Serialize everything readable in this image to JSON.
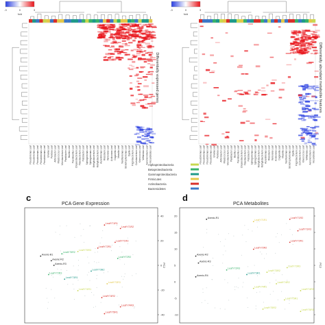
{
  "colors": {
    "high": "#e8141a",
    "low": "#2a3fe0",
    "mid": "#ffffff",
    "taxa": {
      "Alphaproteobacteria": "#c8d850",
      "Betaproteobacteria": "#39b36b",
      "Gammaproteobacteria": "#1f9a8a",
      "Firmicutes": "#e4c84a",
      "Actinobacteria": "#d9302a",
      "Bacteroidetes": "#3d78c8"
    }
  },
  "panel_a": {
    "legend_label": "fold",
    "legend_ticks": [
      "-3",
      "0",
      "3"
    ],
    "side_label": "Differentially expressed genes",
    "column_labels": [
      "Pseudomonas Leaf",
      "Pseudomonas Leaf",
      "Pseudomonas Leaf",
      "Pseudomonas Leaf",
      "Pseudomonas Leaf",
      "Erwinia Leaf",
      "Pantoea Leaf",
      "Arthrobacter Leaf",
      "Rhodococcus Leaf",
      "Microbacterium Leaf",
      "Plantibacter Leaf",
      "Bacillus Leaf",
      "Paenibacillus Leaf",
      "Chryseobacterium Leaf",
      "Flavobacterium Leaf",
      "Pedobacter Leaf",
      "Sphingomonas Leaf",
      "Sphingomonas Leaf",
      "Methylobacterium Leaf",
      "Methylobacterium Leaf",
      "Aurantimonas Leaf",
      "Rhizobium Leaf",
      "Variovorax Leaf",
      "Acidovorax Leaf",
      "Duganella Leaf",
      "Massilia Leaf",
      "Xanthomonas Leaf",
      "Stenotrophomonas Leaf",
      "Dyella Leaf",
      "Frigoribacterium Leaf",
      "Curtobacterium Leaf",
      "Kineococcus Leaf",
      "Williamsia Leaf",
      "Aeromicrobium Leaf",
      "Nocardioides Leaf"
    ]
  },
  "panel_b": {
    "legend_label": "fold",
    "legend_ticks": [
      "-3",
      "0",
      "3"
    ],
    "side_label": "Differentially abundant metabolite features",
    "column_labels": [
      "Pseudomonas Leaf",
      "Pseudomonas Leaf",
      "Pseudomonas Leaf",
      "Pseudomonas Leaf",
      "Erwinia Leaf",
      "Pantoea Leaf",
      "Arthrobacter Leaf",
      "Rhodococcus Leaf",
      "Microbacterium Leaf",
      "Plantibacter Leaf",
      "Bacillus Leaf",
      "Paenibacillus Leaf",
      "Chryseobacterium Leaf",
      "Flavobacterium Leaf",
      "Pedobacter Leaf",
      "Sphingomonas Leaf",
      "Sphingomonas Leaf",
      "Methylobacterium Leaf",
      "Methylobacterium Leaf",
      "Aurantimonas Leaf",
      "Rhizobium Leaf",
      "Variovorax Leaf",
      "Acidovorax Leaf",
      "Duganella Leaf",
      "Massilia Leaf",
      "Xanthomonas Leaf",
      "Stenotrophomonas Leaf",
      "Dyella Leaf",
      "Frigoribacterium Leaf",
      "Curtobacterium Leaf",
      "Kineococcus Leaf",
      "Williamsia Leaf",
      "Aeromicrobium Leaf",
      "Nocardioides Leaf"
    ]
  },
  "taxa_legend": [
    {
      "name": "Alphaproteobacteria",
      "color": "#c8d850"
    },
    {
      "name": "Betaproteobacteria",
      "color": "#39b36b"
    },
    {
      "name": "Gammaproteobacteria",
      "color": "#1f9a8a"
    },
    {
      "name": "Firmicutes",
      "color": "#e4c84a"
    },
    {
      "name": "Actinobacteria",
      "color": "#d9302a"
    },
    {
      "name": "Bacteroidetes",
      "color": "#3d78c8"
    }
  ],
  "panel_c": {
    "letter": "c",
    "title": "PCA Gene Expression",
    "y_ticks": [
      "40",
      "20",
      "0",
      "-20",
      "-40"
    ],
    "y_axis_label": "PC2",
    "labels": [
      {
        "text": "Axenic-R1",
        "color": "#222222",
        "x": 0.12,
        "y": 0.42
      },
      {
        "text": "Axenic-R2",
        "color": "#222222",
        "x": 0.2,
        "y": 0.46
      },
      {
        "text": "Axenic-R3",
        "color": "#222222",
        "x": 0.22,
        "y": 0.5
      },
      {
        "text": "LeafY71R1",
        "color": "#d9302a",
        "x": 0.6,
        "y": 0.15
      },
      {
        "text": "LeafY71R2",
        "color": "#d9302a",
        "x": 0.72,
        "y": 0.18
      },
      {
        "text": "LeafY71R3",
        "color": "#d9302a",
        "x": 0.68,
        "y": 0.3
      },
      {
        "text": "LeafY72R1",
        "color": "#d9302a",
        "x": 0.55,
        "y": 0.35
      },
      {
        "text": "LeafY72R2",
        "color": "#39b36b",
        "x": 0.7,
        "y": 0.44
      },
      {
        "text": "LeafY72R3",
        "color": "#39b36b",
        "x": 0.18,
        "y": 0.58
      },
      {
        "text": "LeafY73R1",
        "color": "#1f9a8a",
        "x": 0.3,
        "y": 0.62
      },
      {
        "text": "LeafY73R2",
        "color": "#1f9a8a",
        "x": 0.5,
        "y": 0.55
      },
      {
        "text": "LeafY73R3",
        "color": "#e4c84a",
        "x": 0.62,
        "y": 0.66
      },
      {
        "text": "LeafY74R1",
        "color": "#c8d850",
        "x": 0.4,
        "y": 0.72
      },
      {
        "text": "LeafY74R2",
        "color": "#d9302a",
        "x": 0.58,
        "y": 0.78
      },
      {
        "text": "LeafY74R3",
        "color": "#d9302a",
        "x": 0.72,
        "y": 0.86
      },
      {
        "text": "LeafY75R1",
        "color": "#d9302a",
        "x": 0.6,
        "y": 0.92
      },
      {
        "text": "LeafY75R2",
        "color": "#39b36b",
        "x": 0.28,
        "y": 0.4
      },
      {
        "text": "LeafY75R3",
        "color": "#c8d850",
        "x": 0.4,
        "y": 0.38
      }
    ]
  },
  "panel_d": {
    "letter": "d",
    "title": "PCA Metabolites",
    "y_ticks": [
      "20",
      "15",
      "10",
      "5",
      "0",
      "-5",
      "-10"
    ],
    "y_axis_label": "PC2",
    "labels": [
      {
        "text": "Axenic-R1",
        "color": "#222222",
        "x": 0.2,
        "y": 0.1
      },
      {
        "text": "Axenic-R2",
        "color": "#222222",
        "x": 0.12,
        "y": 0.42
      },
      {
        "text": "Axenic-R3",
        "color": "#222222",
        "x": 0.14,
        "y": 0.48
      },
      {
        "text": "Axenic-R4",
        "color": "#222222",
        "x": 0.12,
        "y": 0.6
      },
      {
        "text": "LeafY71R1",
        "color": "#e4c84a",
        "x": 0.55,
        "y": 0.12
      },
      {
        "text": "LeafY71R2",
        "color": "#d9302a",
        "x": 0.82,
        "y": 0.1
      },
      {
        "text": "LeafY71R3",
        "color": "#d9302a",
        "x": 0.88,
        "y": 0.2
      },
      {
        "text": "LeafY72R1",
        "color": "#d9302a",
        "x": 0.82,
        "y": 0.3
      },
      {
        "text": "LeafY72R2",
        "color": "#d9302a",
        "x": 0.55,
        "y": 0.36
      },
      {
        "text": "LeafY72R3",
        "color": "#39b36b",
        "x": 0.35,
        "y": 0.54
      },
      {
        "text": "LeafY73R1",
        "color": "#1f9a8a",
        "x": 0.5,
        "y": 0.58
      },
      {
        "text": "LeafY73R2",
        "color": "#c8d850",
        "x": 0.65,
        "y": 0.56
      },
      {
        "text": "LeafY73R3",
        "color": "#c8d850",
        "x": 0.8,
        "y": 0.52
      },
      {
        "text": "LeafY74R1",
        "color": "#c8d850",
        "x": 0.55,
        "y": 0.7
      },
      {
        "text": "LeafY74R2",
        "color": "#c8d850",
        "x": 0.72,
        "y": 0.66
      },
      {
        "text": "LeafY74R3",
        "color": "#c8d850",
        "x": 0.9,
        "y": 0.72
      },
      {
        "text": "LeafY75R1",
        "color": "#c8d850",
        "x": 0.78,
        "y": 0.8
      },
      {
        "text": "LeafY75R2",
        "color": "#c8d850",
        "x": 0.62,
        "y": 0.88
      },
      {
        "text": "LeafY75R3",
        "color": "#c8d850",
        "x": 0.9,
        "y": 0.9
      }
    ]
  }
}
